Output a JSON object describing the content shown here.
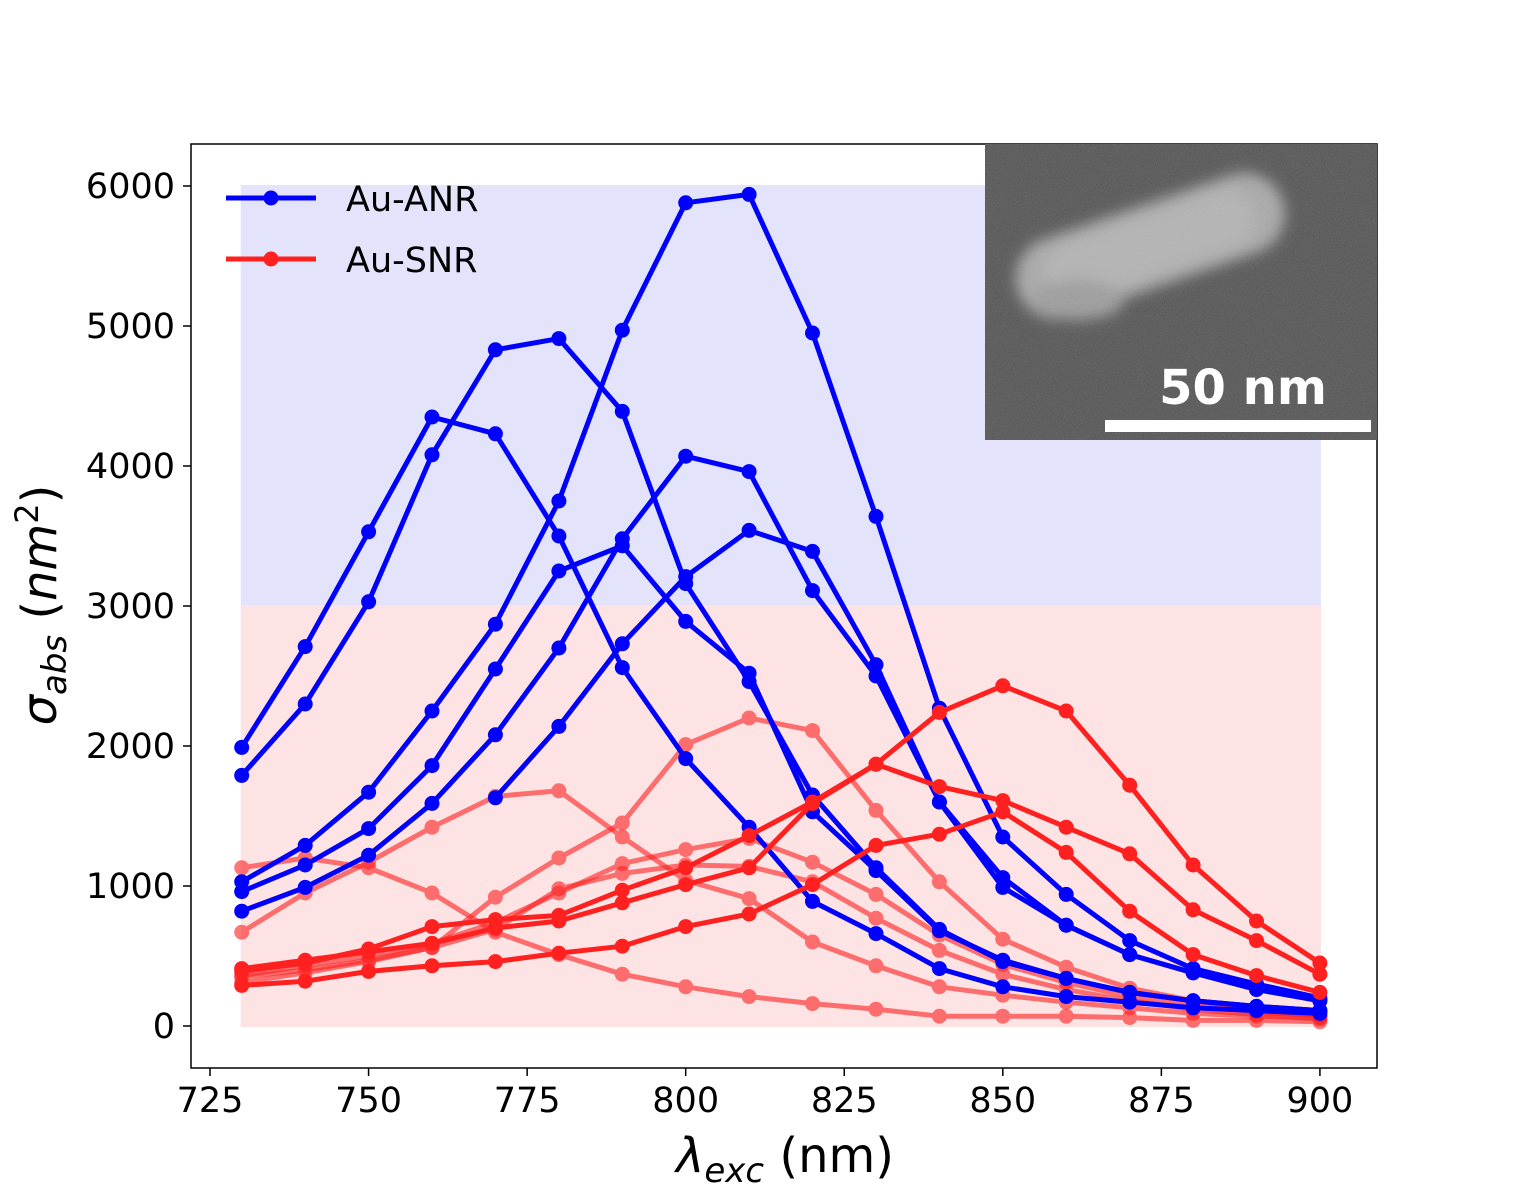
{
  "chart_data": {
    "type": "line",
    "title": "",
    "xlabel": {
      "symbol": "λ",
      "subscript": "exc",
      "unit": " (nm)"
    },
    "ylabel": {
      "symbol": "σ",
      "subscript": "abs",
      "unit_open": " (",
      "unit_base": "nm",
      "unit_exp": "2",
      "unit_close": ")"
    },
    "xlim": [
      722,
      909
    ],
    "ylim": [
      -300,
      6300
    ],
    "x_ticks": [
      725,
      750,
      775,
      800,
      825,
      850,
      875,
      900
    ],
    "y_ticks": [
      0,
      1000,
      2000,
      3000,
      4000,
      5000,
      6000
    ],
    "grid": false,
    "legend_placement": "top-left",
    "legend": [
      {
        "label": "Au-ANR",
        "color": "#0000ff"
      },
      {
        "label": "Au-SNR",
        "color": "#ff2020"
      }
    ],
    "bands": [
      {
        "x": [
          730,
          900
        ],
        "y": [
          3000,
          6000
        ],
        "color": "#e3e3fb"
      },
      {
        "x": [
          730,
          900
        ],
        "y": [
          0,
          3000
        ],
        "color": "#fde3e3"
      }
    ],
    "x": [
      730,
      740,
      750,
      760,
      770,
      780,
      790,
      800,
      810,
      820,
      830,
      840,
      850,
      860,
      870,
      880,
      890,
      900
    ],
    "series": [
      {
        "group": "Au-ANR",
        "color": "#0000ff",
        "opacity": 1,
        "values": [
          1990,
          2710,
          3530,
          4350,
          4230,
          3500,
          2560,
          1910,
          1420,
          890,
          660,
          410,
          280,
          210,
          170,
          130,
          110,
          90
        ]
      },
      {
        "group": "Au-ANR",
        "color": "#0000ff",
        "opacity": 1,
        "values": [
          1790,
          2300,
          3030,
          4080,
          4830,
          4910,
          4390,
          3160,
          2460,
          1650,
          1130,
          690,
          460,
          340,
          240,
          180,
          140,
          110
        ]
      },
      {
        "group": "Au-ANR",
        "color": "#0000ff",
        "opacity": 1,
        "values": [
          1030,
          1290,
          1670,
          2250,
          2870,
          3750,
          4970,
          5880,
          5940,
          4950,
          3640,
          2270,
          1350,
          940,
          610,
          410,
          300,
          200
        ]
      },
      {
        "group": "Au-ANR",
        "color": "#0000ff",
        "opacity": 1,
        "values": [
          960,
          1150,
          1410,
          1860,
          2550,
          3250,
          3430,
          2890,
          2520,
          1530,
          1110,
          680,
          470,
          340,
          240,
          180,
          140,
          110
        ]
      },
      {
        "group": "Au-ANR",
        "color": "#0000ff",
        "opacity": 1,
        "values": [
          820,
          990,
          1220,
          1590,
          2080,
          2700,
          3480,
          4070,
          3960,
          3110,
          2500,
          1600,
          1060,
          720,
          510,
          380,
          270,
          180
        ]
      },
      {
        "group": "Au-ANR",
        "color": "#0000ff",
        "opacity": 1,
        "values": [
          null,
          null,
          null,
          null,
          1630,
          2140,
          2730,
          3210,
          3540,
          3390,
          2580,
          1600,
          990,
          720,
          510,
          380,
          260,
          180
        ]
      },
      {
        "group": "Au-SNR",
        "color": "#ff2020",
        "opacity": 1,
        "values": [
          410,
          470,
          530,
          590,
          700,
          750,
          880,
          1010,
          1130,
          1590,
          1870,
          2240,
          2430,
          2250,
          1720,
          1150,
          750,
          450
        ]
      },
      {
        "group": "Au-SNR",
        "color": "#ff2020",
        "opacity": 1,
        "values": [
          390,
          450,
          550,
          710,
          760,
          790,
          970,
          1130,
          1360,
          1600,
          1870,
          1710,
          1610,
          1420,
          1230,
          830,
          610,
          370
        ]
      },
      {
        "group": "Au-SNR",
        "color": "#ff2020",
        "opacity": 1,
        "values": [
          290,
          320,
          390,
          430,
          460,
          520,
          570,
          710,
          800,
          1010,
          1290,
          1370,
          1530,
          1240,
          820,
          510,
          360,
          240
        ]
      },
      {
        "group": "Au-SNR",
        "color": "#ff2020",
        "opacity": 0.6,
        "values": [
          1130,
          1200,
          1130,
          950,
          670,
          510,
          370,
          280,
          210,
          160,
          120,
          70,
          70,
          70,
          60,
          40,
          40,
          30
        ]
      },
      {
        "group": "Au-SNR",
        "color": "#ff2020",
        "opacity": 0.6,
        "values": [
          670,
          950,
          1170,
          1420,
          1640,
          1680,
          1350,
          1040,
          910,
          600,
          430,
          280,
          220,
          170,
          130,
          90,
          70,
          60
        ]
      },
      {
        "group": "Au-SNR",
        "color": "#ff2020",
        "opacity": 0.6,
        "values": [
          350,
          400,
          470,
          560,
          920,
          1200,
          1450,
          2010,
          2200,
          2110,
          1540,
          1030,
          620,
          420,
          270,
          180,
          120,
          70
        ]
      },
      {
        "group": "Au-SNR",
        "color": "#ff2020",
        "opacity": 0.6,
        "values": [
          360,
          430,
          500,
          590,
          740,
          950,
          1160,
          1260,
          1340,
          1170,
          940,
          650,
          440,
          310,
          210,
          150,
          100,
          70
        ]
      },
      {
        "group": "Au-SNR",
        "color": "#ff2020",
        "opacity": 0.6,
        "values": [
          310,
          380,
          460,
          560,
          690,
          980,
          1090,
          1150,
          1140,
          1030,
          770,
          540,
          370,
          260,
          180,
          120,
          80,
          50
        ]
      }
    ]
  },
  "inset": {
    "scale_bar_label": "50 nm"
  }
}
